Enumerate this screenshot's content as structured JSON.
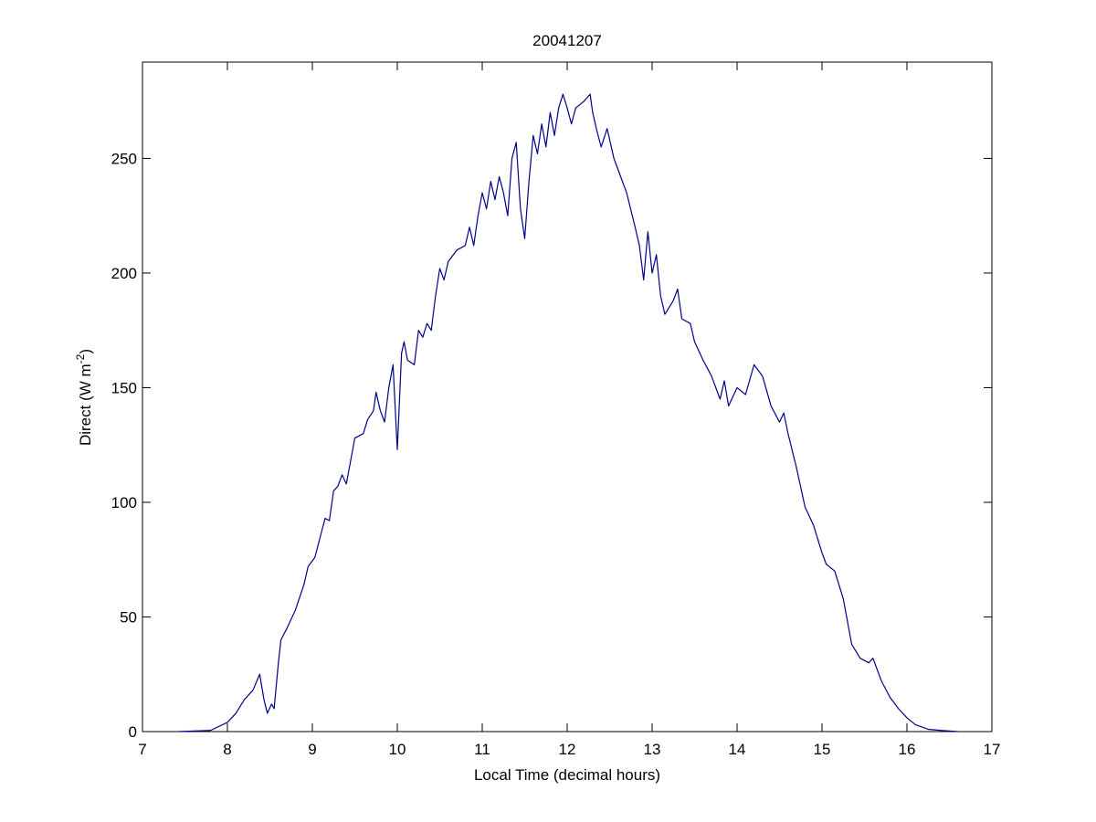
{
  "chart_data": {
    "type": "line",
    "title": "20041207",
    "xlabel": "Local Time (decimal hours)",
    "ylabel": {
      "text": "Direct (W m",
      "superscript": "-2",
      "suffix": ")"
    },
    "xlim": [
      7,
      17
    ],
    "xticks": [
      7,
      8,
      9,
      10,
      11,
      12,
      13,
      14,
      15,
      16,
      17
    ],
    "ylim": [
      0,
      292
    ],
    "yticks": [
      0,
      50,
      100,
      150,
      200,
      250
    ],
    "grid": false,
    "series": [
      {
        "name": "Direct",
        "color": "#00008b",
        "x": [
          7.43,
          7.8,
          8.0,
          8.1,
          8.2,
          8.3,
          8.38,
          8.43,
          8.47,
          8.52,
          8.55,
          8.6,
          8.63,
          8.7,
          8.8,
          8.9,
          8.95,
          9.03,
          9.1,
          9.15,
          9.2,
          9.25,
          9.3,
          9.35,
          9.4,
          9.45,
          9.5,
          9.6,
          9.65,
          9.72,
          9.75,
          9.8,
          9.85,
          9.9,
          9.95,
          10.0,
          10.05,
          10.08,
          10.12,
          10.2,
          10.25,
          10.3,
          10.35,
          10.4,
          10.45,
          10.5,
          10.55,
          10.6,
          10.7,
          10.8,
          10.85,
          10.9,
          10.95,
          11.0,
          11.05,
          11.1,
          11.15,
          11.2,
          11.25,
          11.3,
          11.35,
          11.4,
          11.45,
          11.5,
          11.55,
          11.6,
          11.65,
          11.7,
          11.75,
          11.8,
          11.85,
          11.9,
          11.95,
          12.0,
          12.05,
          12.1,
          12.2,
          12.27,
          12.3,
          12.35,
          12.4,
          12.47,
          12.55,
          12.6,
          12.7,
          12.8,
          12.85,
          12.9,
          12.95,
          13.0,
          13.05,
          13.1,
          13.15,
          13.25,
          13.3,
          13.35,
          13.45,
          13.5,
          13.6,
          13.7,
          13.8,
          13.85,
          13.9,
          14.0,
          14.1,
          14.2,
          14.3,
          14.4,
          14.5,
          14.55,
          14.6,
          14.7,
          14.8,
          14.9,
          15.0,
          15.05,
          15.15,
          15.25,
          15.35,
          15.45,
          15.55,
          15.6,
          15.7,
          15.8,
          15.9,
          16.0,
          16.1,
          16.25,
          16.4,
          16.6
        ],
        "values": [
          0,
          0.5,
          4,
          8,
          14,
          18,
          25,
          14,
          8,
          12,
          10,
          30,
          40,
          45,
          53,
          64,
          72,
          76,
          86,
          93,
          92,
          105,
          107,
          112,
          108,
          118,
          128,
          130,
          136,
          140,
          148,
          140,
          135,
          150,
          160,
          123,
          165,
          170,
          162,
          160,
          175,
          172,
          178,
          175,
          190,
          202,
          197,
          205,
          210,
          212,
          220,
          212,
          225,
          235,
          228,
          240,
          232,
          242,
          235,
          225,
          250,
          257,
          228,
          215,
          240,
          260,
          252,
          265,
          255,
          270,
          260,
          272,
          278,
          272,
          265,
          272,
          275,
          278,
          270,
          262,
          255,
          263,
          250,
          245,
          235,
          220,
          212,
          197,
          218,
          200,
          208,
          190,
          182,
          188,
          193,
          180,
          178,
          170,
          162,
          155,
          145,
          153,
          142,
          150,
          147,
          160,
          155,
          142,
          135,
          139,
          130,
          115,
          98,
          90,
          78,
          73,
          70,
          58,
          38,
          32,
          30,
          32,
          22,
          15,
          10,
          6,
          3,
          1,
          0.5,
          0
        ]
      }
    ]
  }
}
